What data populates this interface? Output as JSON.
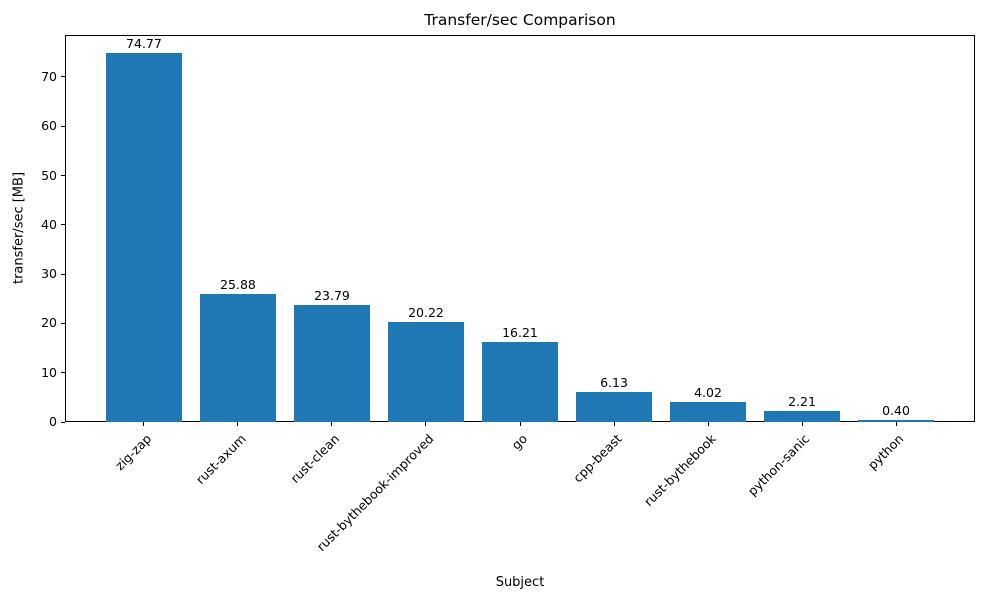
{
  "chart_data": {
    "type": "bar",
    "title": "Transfer/sec Comparison",
    "xlabel": "Subject",
    "ylabel": "transfer/sec [MB]",
    "categories": [
      "zig-zap",
      "rust-axum",
      "rust-clean",
      "rust-bythebook-improved",
      "go",
      "cpp-beast",
      "rust-bythebook",
      "python-sanic",
      "python"
    ],
    "values": [
      74.77,
      25.88,
      23.79,
      20.22,
      16.21,
      6.13,
      4.02,
      2.21,
      0.4
    ],
    "value_labels": [
      "74.77",
      "25.88",
      "23.79",
      "20.22",
      "16.21",
      "6.13",
      "4.02",
      "2.21",
      "0.40"
    ],
    "ylim": [
      0,
      78.5
    ],
    "yticks": [
      0,
      10,
      20,
      30,
      40,
      50,
      60,
      70
    ],
    "bar_color": "#1f77b4",
    "grid": false,
    "legend": "none",
    "x_tick_rotation": 45
  }
}
